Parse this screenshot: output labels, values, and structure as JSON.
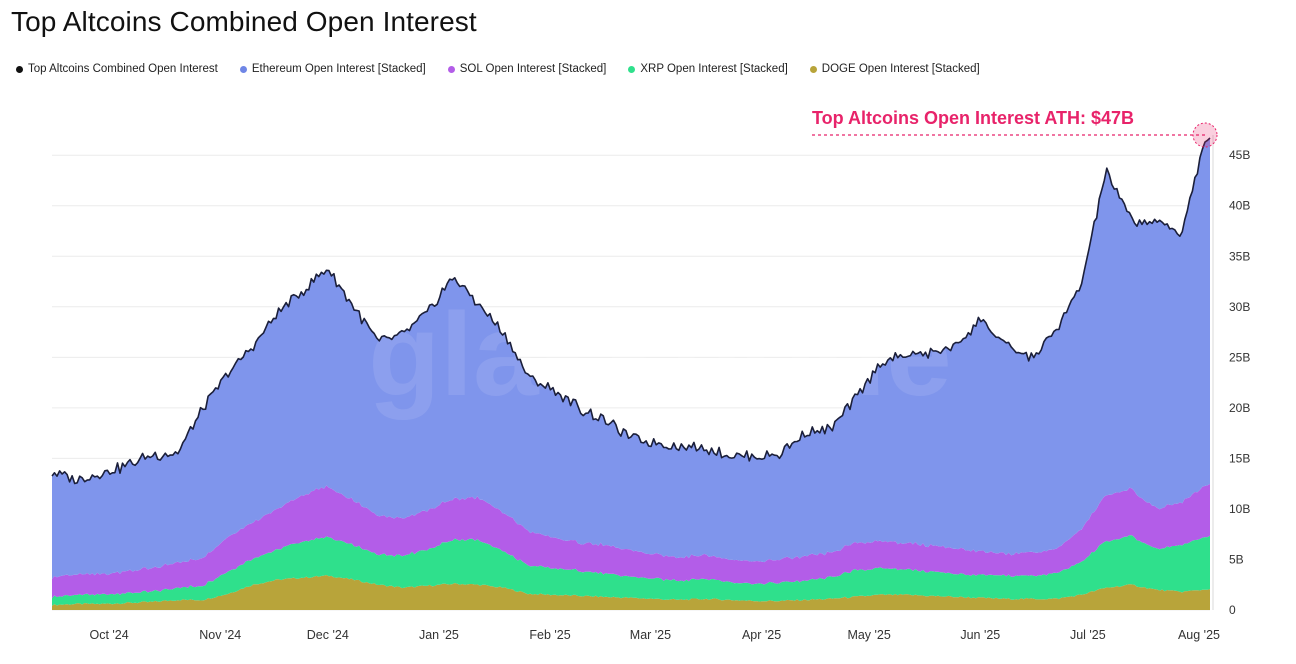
{
  "title": "Top Altcoins Combined Open Interest",
  "legend": [
    {
      "label": "Top Altcoins Combined Open Interest",
      "color": "#111111"
    },
    {
      "label": "Ethereum Open Interest [Stacked]",
      "color": "#6f86e6"
    },
    {
      "label": "SOL Open Interest [Stacked]",
      "color": "#b35de8"
    },
    {
      "label": "XRP Open Interest [Stacked]",
      "color": "#2fe08c"
    },
    {
      "label": "DOGE Open Interest [Stacked]",
      "color": "#b8a43a"
    }
  ],
  "watermark": "glassnode",
  "annotation": {
    "text": "Top Altcoins Open Interest ATH: $47B",
    "color": "#e8236a",
    "value": 47
  },
  "chart_data": {
    "type": "area",
    "x_ticks": [
      "Oct '24",
      "Nov '24",
      "Dec '24",
      "Jan '25",
      "Feb '25",
      "Mar '25",
      "Apr '25",
      "May '25",
      "Jun '25",
      "Jul '25",
      "Aug '25"
    ],
    "y_ticks": [
      "0",
      "5B",
      "10B",
      "15B",
      "20B",
      "25B",
      "30B",
      "35B",
      "40B",
      "45B"
    ],
    "ylim": [
      0,
      47
    ],
    "y_unit": "B",
    "x": [
      "2024-09-24",
      "2024-10-01",
      "2024-10-08",
      "2024-10-15",
      "2024-10-22",
      "2024-10-29",
      "2024-11-05",
      "2024-11-12",
      "2024-11-19",
      "2024-11-26",
      "2024-12-03",
      "2024-12-10",
      "2024-12-17",
      "2024-12-24",
      "2024-12-31",
      "2025-01-07",
      "2025-01-14",
      "2025-01-21",
      "2025-01-28",
      "2025-02-04",
      "2025-02-11",
      "2025-02-18",
      "2025-02-25",
      "2025-03-04",
      "2025-03-11",
      "2025-03-18",
      "2025-03-25",
      "2025-04-01",
      "2025-04-08",
      "2025-04-15",
      "2025-04-22",
      "2025-04-29",
      "2025-05-06",
      "2025-05-13",
      "2025-05-20",
      "2025-05-27",
      "2025-06-03",
      "2025-06-10",
      "2025-06-17",
      "2025-06-24",
      "2025-07-01",
      "2025-07-08",
      "2025-07-15",
      "2025-07-22",
      "2025-07-29",
      "2025-08-05",
      "2025-08-11",
      "2025-08-13"
    ],
    "series": [
      {
        "name": "DOGE Open Interest [Stacked]",
        "color": "#b8a43a",
        "values": [
          0.5,
          0.6,
          0.6,
          0.7,
          0.8,
          1.0,
          1.0,
          1.6,
          2.5,
          3.0,
          3.2,
          3.4,
          3.0,
          2.5,
          2.2,
          2.4,
          2.6,
          2.5,
          2.2,
          1.6,
          1.5,
          1.4,
          1.3,
          1.2,
          1.1,
          1.0,
          1.1,
          1.0,
          0.9,
          0.9,
          1.0,
          1.1,
          1.3,
          1.5,
          1.5,
          1.4,
          1.3,
          1.2,
          1.1,
          1.1,
          1.1,
          1.5,
          2.2,
          2.5,
          2.0,
          1.8,
          2.0,
          2.1
        ]
      },
      {
        "name": "XRP Open Interest [Stacked]",
        "color": "#2fe08c",
        "values": [
          0.8,
          0.9,
          0.9,
          1.0,
          1.0,
          1.2,
          1.4,
          2.2,
          2.6,
          3.0,
          3.6,
          3.8,
          3.4,
          3.0,
          3.2,
          3.6,
          4.4,
          4.4,
          3.6,
          2.8,
          2.6,
          2.5,
          2.3,
          2.1,
          2.0,
          1.9,
          2.0,
          1.8,
          1.7,
          1.8,
          1.9,
          2.1,
          2.6,
          2.6,
          2.5,
          2.4,
          2.3,
          2.2,
          2.3,
          2.3,
          2.5,
          3.2,
          4.6,
          4.8,
          4.0,
          4.6,
          5.2,
          5.3
        ]
      },
      {
        "name": "SOL Open Interest [Stacked]",
        "color": "#b35de8",
        "values": [
          2.0,
          2.0,
          2.0,
          2.2,
          2.3,
          2.5,
          2.7,
          3.4,
          3.6,
          4.0,
          4.6,
          5.0,
          4.4,
          3.9,
          3.7,
          3.9,
          4.0,
          4.2,
          3.8,
          3.4,
          3.0,
          2.8,
          2.8,
          2.6,
          2.4,
          2.3,
          2.4,
          2.2,
          2.2,
          2.3,
          2.4,
          2.4,
          2.7,
          2.7,
          2.6,
          2.6,
          2.5,
          2.3,
          2.2,
          2.3,
          2.4,
          3.2,
          4.6,
          4.6,
          4.0,
          4.2,
          5.0,
          5.2
        ]
      },
      {
        "name": "Ethereum Open Interest [Stacked]",
        "color": "#7f95ec",
        "values": [
          10.4,
          9.3,
          10.0,
          10.5,
          11.2,
          10.8,
          14.8,
          16.2,
          17.4,
          19.4,
          20.2,
          21.6,
          19.2,
          17.2,
          18.2,
          19.6,
          22.0,
          19.1,
          17.8,
          15.2,
          14.6,
          13.3,
          12.4,
          11.2,
          11.0,
          11.0,
          10.6,
          10.3,
          10.4,
          10.4,
          12.2,
          12.2,
          14.2,
          17.6,
          18.6,
          19.0,
          20.0,
          23.0,
          20.6,
          19.2,
          21.6,
          24.1,
          32.1,
          26.6,
          28.4,
          26.6,
          33.6,
          34.0
        ]
      }
    ],
    "total": {
      "name": "Top Altcoins Combined Open Interest",
      "color": "#1b1f3a"
    }
  }
}
